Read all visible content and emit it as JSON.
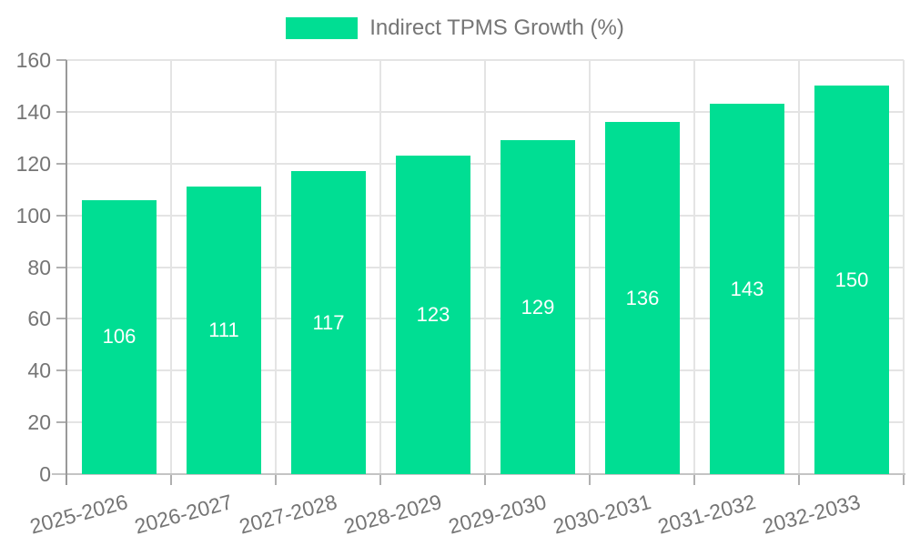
{
  "legend": {
    "label": "Indirect TPMS Growth (%)"
  },
  "chart_data": {
    "type": "bar",
    "title": "",
    "categories": [
      "2025-2026",
      "2026-2027",
      "2027-2028",
      "2028-2029",
      "2029-2030",
      "2030-2031",
      "2031-2032",
      "2032-2033"
    ],
    "series": [
      {
        "name": "Indirect TPMS Growth (%)",
        "values": [
          106,
          111,
          117,
          123,
          129,
          136,
          143,
          150
        ]
      }
    ],
    "bar_value_labels": [
      "106",
      "111",
      "117",
      "123",
      "129",
      "136",
      "143",
      "150"
    ],
    "xlabel": "",
    "ylabel": "",
    "ylim": [
      0,
      160
    ],
    "yticks": [
      0,
      20,
      40,
      60,
      80,
      100,
      120,
      140,
      160
    ],
    "grid": true,
    "legend_position": "top-center",
    "colors": {
      "bar": "#00DE93",
      "bar_label_text": "#ffffff",
      "axis_text": "#757575",
      "grid_line": "#e4e4e4",
      "y_axis_line": "#999999",
      "x_axis_line": "#c4c4c4",
      "tick_mark": "#b0b0b0",
      "background": "#ffffff"
    }
  }
}
